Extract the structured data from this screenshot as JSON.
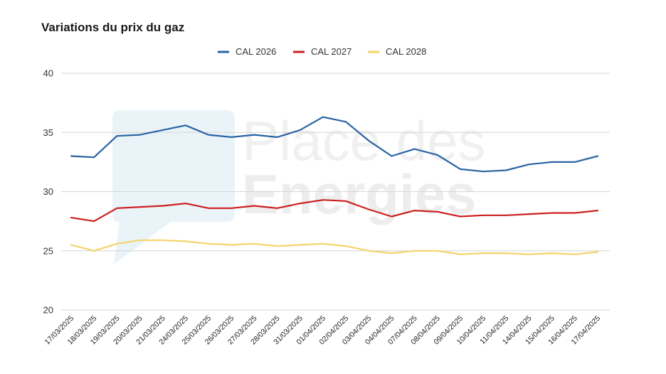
{
  "chart_data": {
    "type": "line",
    "title": "Variations du prix du gaz",
    "xlabel": "",
    "ylabel": "",
    "ylim": [
      20,
      40
    ],
    "yticks": [
      20,
      25,
      30,
      35,
      40
    ],
    "grid": true,
    "legend_position": "top-center",
    "categories": [
      "17/03/2025",
      "18/03/2025",
      "19/03/2025",
      "20/03/2025",
      "21/03/2025",
      "24/03/2025",
      "25/03/2025",
      "26/03/2025",
      "27/03/2025",
      "28/03/2025",
      "31/03/2025",
      "01/04/2025",
      "02/04/2025",
      "03/04/2025",
      "04/04/2025",
      "07/04/2025",
      "08/04/2025",
      "09/04/2025",
      "10/04/2025",
      "11/04/2025",
      "14/04/2025",
      "15/04/2025",
      "16/04/2025",
      "17/04/2025"
    ],
    "series": [
      {
        "name": "CAL 2026",
        "color": "#2b63a3",
        "values": [
          33.0,
          32.9,
          34.7,
          34.8,
          35.2,
          35.6,
          34.8,
          34.6,
          34.8,
          34.6,
          35.2,
          36.3,
          35.9,
          34.3,
          33.0,
          33.6,
          33.1,
          31.9,
          31.7,
          31.8,
          32.3,
          32.5,
          32.5,
          33.0
        ]
      },
      {
        "name": "CAL 2027",
        "color": "#cc1f1f",
        "values": [
          27.8,
          27.5,
          28.6,
          28.7,
          28.8,
          29.0,
          28.6,
          28.6,
          28.8,
          28.6,
          29.0,
          29.3,
          29.2,
          28.5,
          27.9,
          28.4,
          28.3,
          27.9,
          28.0,
          28.0,
          28.1,
          28.2,
          28.2,
          28.4
        ]
      },
      {
        "name": "CAL 2028",
        "color": "#f5d36b",
        "values": [
          25.5,
          25.0,
          25.6,
          25.9,
          25.9,
          25.8,
          25.6,
          25.5,
          25.6,
          25.4,
          25.5,
          25.6,
          25.4,
          25.0,
          24.8,
          25.0,
          25.0,
          24.7,
          24.8,
          24.8,
          24.7,
          24.8,
          24.7,
          24.9
        ]
      }
    ]
  },
  "watermark": {
    "line1": "Place des",
    "line2": "Energies"
  }
}
